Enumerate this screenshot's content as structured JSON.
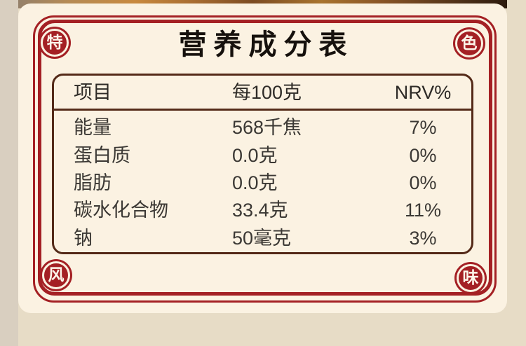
{
  "colors": {
    "accent_red": "#a42024",
    "card_bg": "#fbf2e2",
    "page_bg": "#e7dcc6",
    "table_border": "#542a18",
    "text_dark": "#3b3834"
  },
  "title": "营养成分表",
  "seals": {
    "top_left": "特",
    "top_right": "色",
    "bottom_left": "风",
    "bottom_right": "味"
  },
  "table": {
    "headers": [
      "项目",
      "每100克",
      "NRV%"
    ],
    "rows": [
      {
        "item": "能量",
        "amount": "568千焦",
        "nrv": "7%"
      },
      {
        "item": "蛋白质",
        "amount": "0.0克",
        "nrv": "0%"
      },
      {
        "item": "脂肪",
        "amount": "0.0克",
        "nrv": "0%"
      },
      {
        "item": "碳水化合物",
        "amount": "33.4克",
        "nrv": "11%"
      },
      {
        "item": "钠",
        "amount": "50毫克",
        "nrv": "3%"
      }
    ]
  }
}
